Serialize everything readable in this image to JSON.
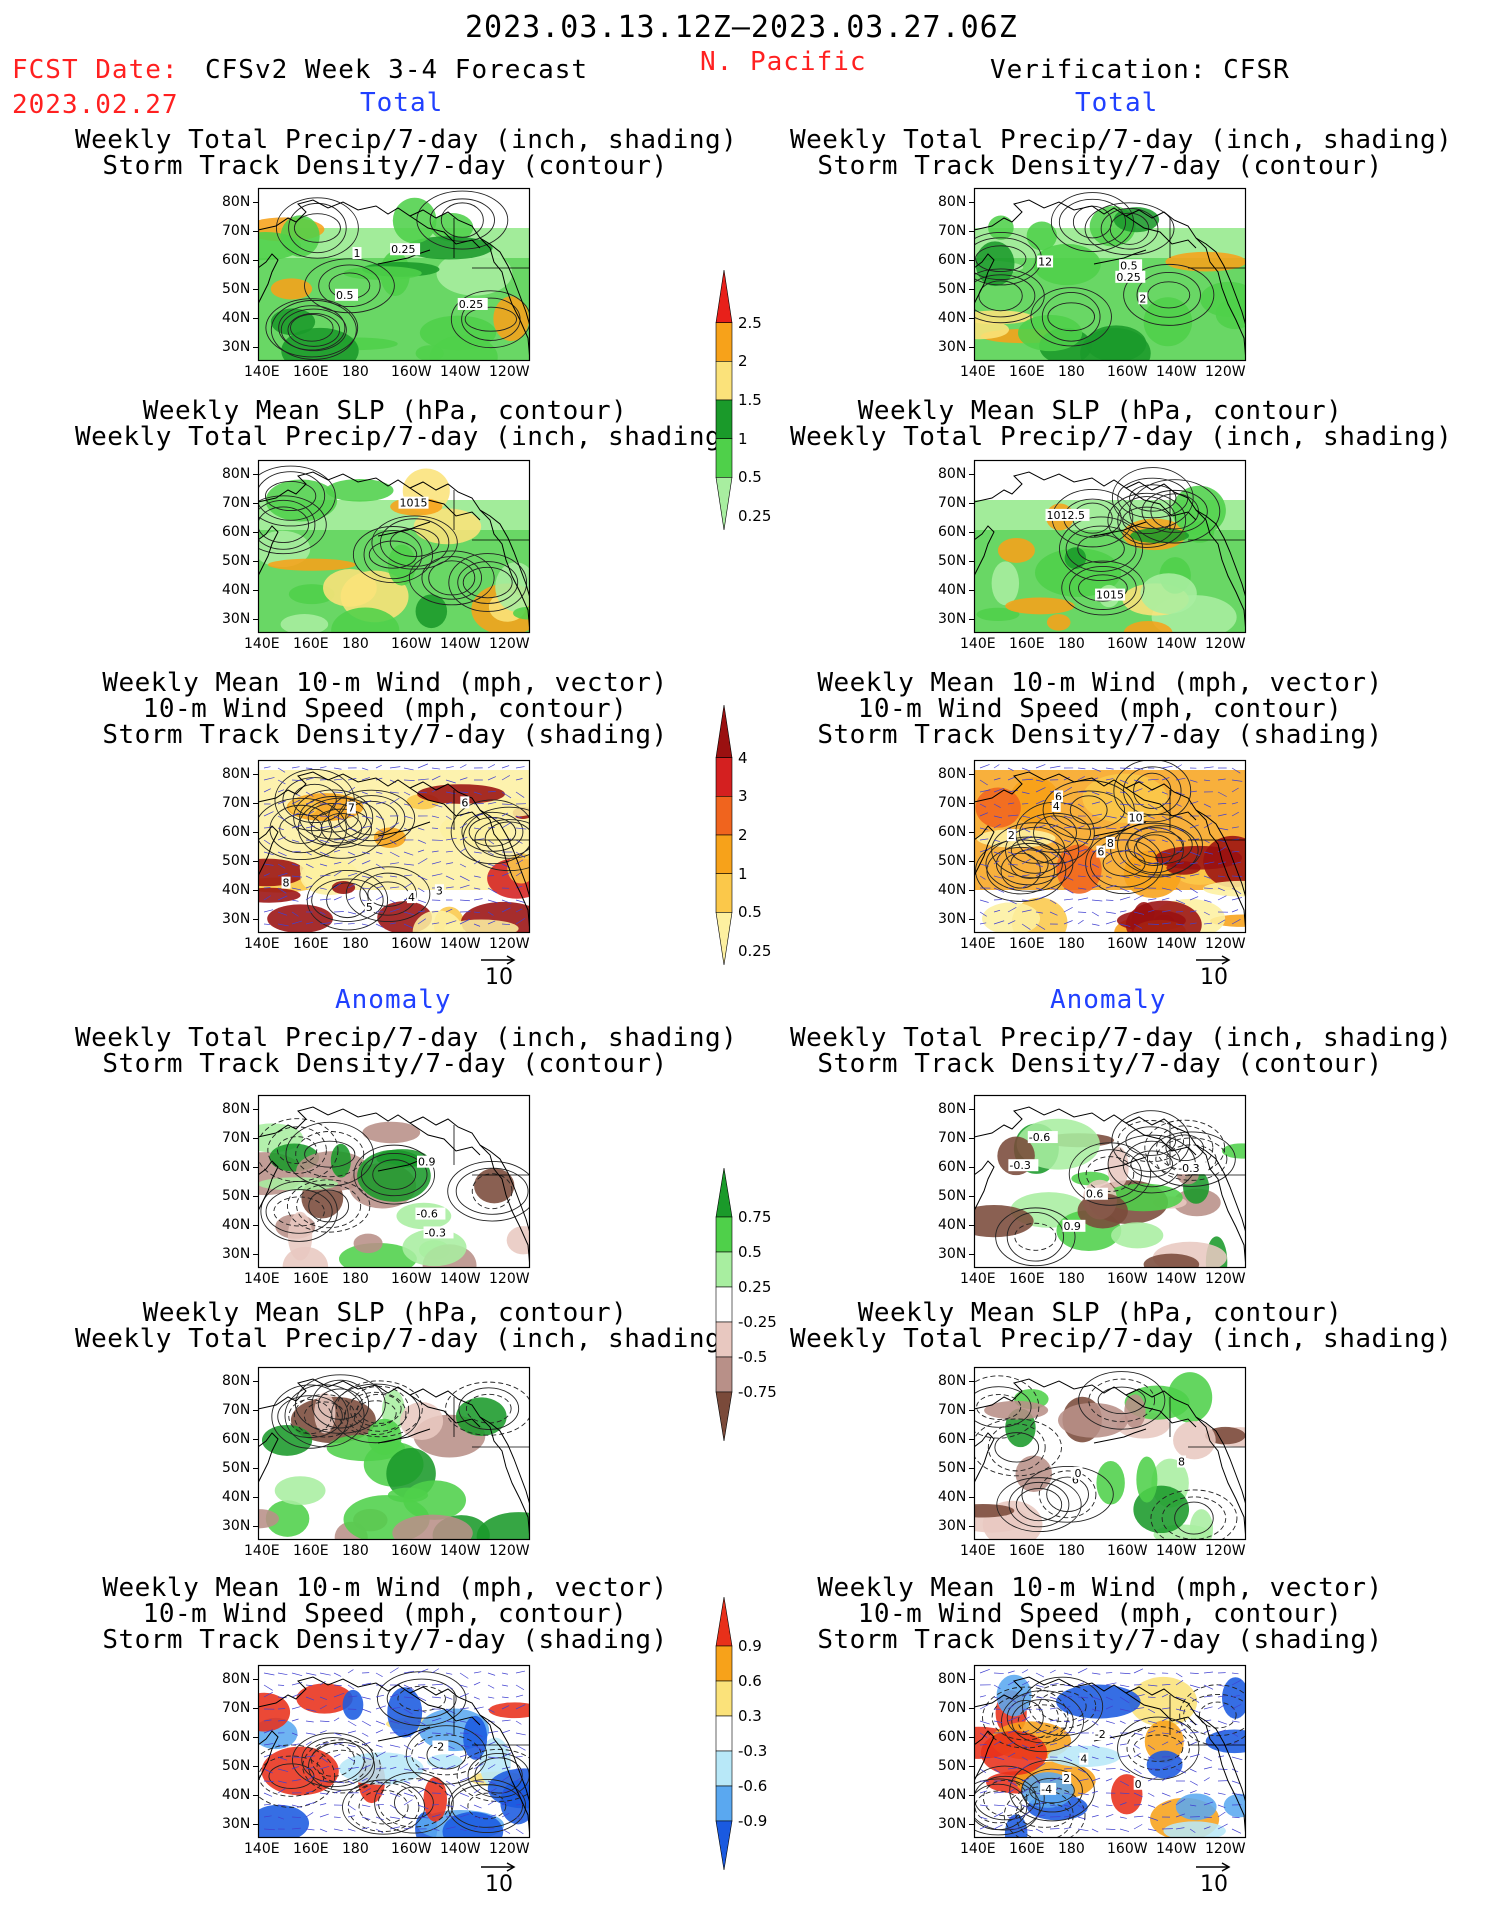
{
  "header": {
    "date_range": "2023.03.13.12Z–2023.03.27.06Z",
    "fcst_date_label": "FCST Date:",
    "fcst_date_value": "2023.02.27",
    "model_label": "CFSv2 Week 3-4 Forecast",
    "region": "N. Pacific",
    "verification_label": "Verification: CFSR"
  },
  "sections": {
    "total_label": "Total",
    "anomaly_label": "Anomaly"
  },
  "panel_titles": {
    "precip_storm": [
      "Weekly Total Precip/7-day (inch, shading)",
      "Storm Track Density/7-day (contour)"
    ],
    "slp_precip": [
      "Weekly Mean SLP (hPa, contour)",
      "Weekly Total Precip/7-day (inch, shading)"
    ],
    "wind_storm": [
      "Weekly Mean 10-m Wind (mph, vector)",
      "10-m Wind Speed (mph, contour)",
      "Storm Track Density/7-day (shading)"
    ]
  },
  "axes": {
    "lat_labels": [
      "80N",
      "70N",
      "60N",
      "50N",
      "40N",
      "30N"
    ],
    "lon_labels": [
      "140E",
      "160E",
      "180",
      "160W",
      "140W",
      "120W"
    ],
    "vector_ref": "10"
  },
  "colorbars": {
    "precip_total": {
      "labels": [
        "2.5",
        "2",
        "1.5",
        "1",
        "0.5",
        "0.25"
      ],
      "colors": [
        "#e8201a",
        "#f7a21a",
        "#fbe27a",
        "#1a9a2a",
        "#4fd04a",
        "#a8eea0"
      ]
    },
    "storm_total": {
      "labels": [
        "4",
        "3",
        "2",
        "1",
        "0.5",
        "0.25"
      ],
      "colors": [
        "#9a1010",
        "#d42020",
        "#f0641e",
        "#f7a21a",
        "#fbc84a",
        "#fdf0a0"
      ]
    },
    "precip_anom": {
      "labels": [
        "0.75",
        "0.5",
        "0.25",
        "-0.25",
        "-0.5",
        "-0.75"
      ],
      "colors": [
        "#1a9a2a",
        "#4fd04a",
        "#a8eea0",
        "#ffffff",
        "#e8c8c0",
        "#b89088",
        "#7a4a3a"
      ]
    },
    "storm_anom": {
      "labels": [
        "0.9",
        "0.6",
        "0.3",
        "-0.3",
        "-0.6",
        "-0.9"
      ],
      "colors": [
        "#e8301a",
        "#f7a21a",
        "#fbe27a",
        "#ffffff",
        "#b8e8f8",
        "#5aa8f0",
        "#1a5ae0"
      ]
    }
  },
  "panel_labels": {
    "l1": [
      "0.25",
      "0.5",
      "0.25",
      "1"
    ],
    "r1": [
      "12",
      "2",
      "0.5",
      "0.25"
    ],
    "l2": [
      "1015"
    ],
    "r2": [
      "1012.5",
      "1015"
    ],
    "l3": [
      "4",
      "6",
      "3",
      "5",
      "7",
      "8"
    ],
    "r3": [
      "6",
      "4",
      "6",
      "10",
      "2",
      "8"
    ],
    "l4": [
      "-0.6",
      "0.9",
      "-0.3"
    ],
    "r4": [
      "0.9",
      "-0.3",
      "0.6",
      "-0.6",
      "-0.3"
    ],
    "r5": [
      "6",
      "8",
      "0"
    ],
    "l6": [
      "-2"
    ],
    "r6": [
      "4",
      "0",
      "2",
      "-4",
      "-2"
    ]
  }
}
